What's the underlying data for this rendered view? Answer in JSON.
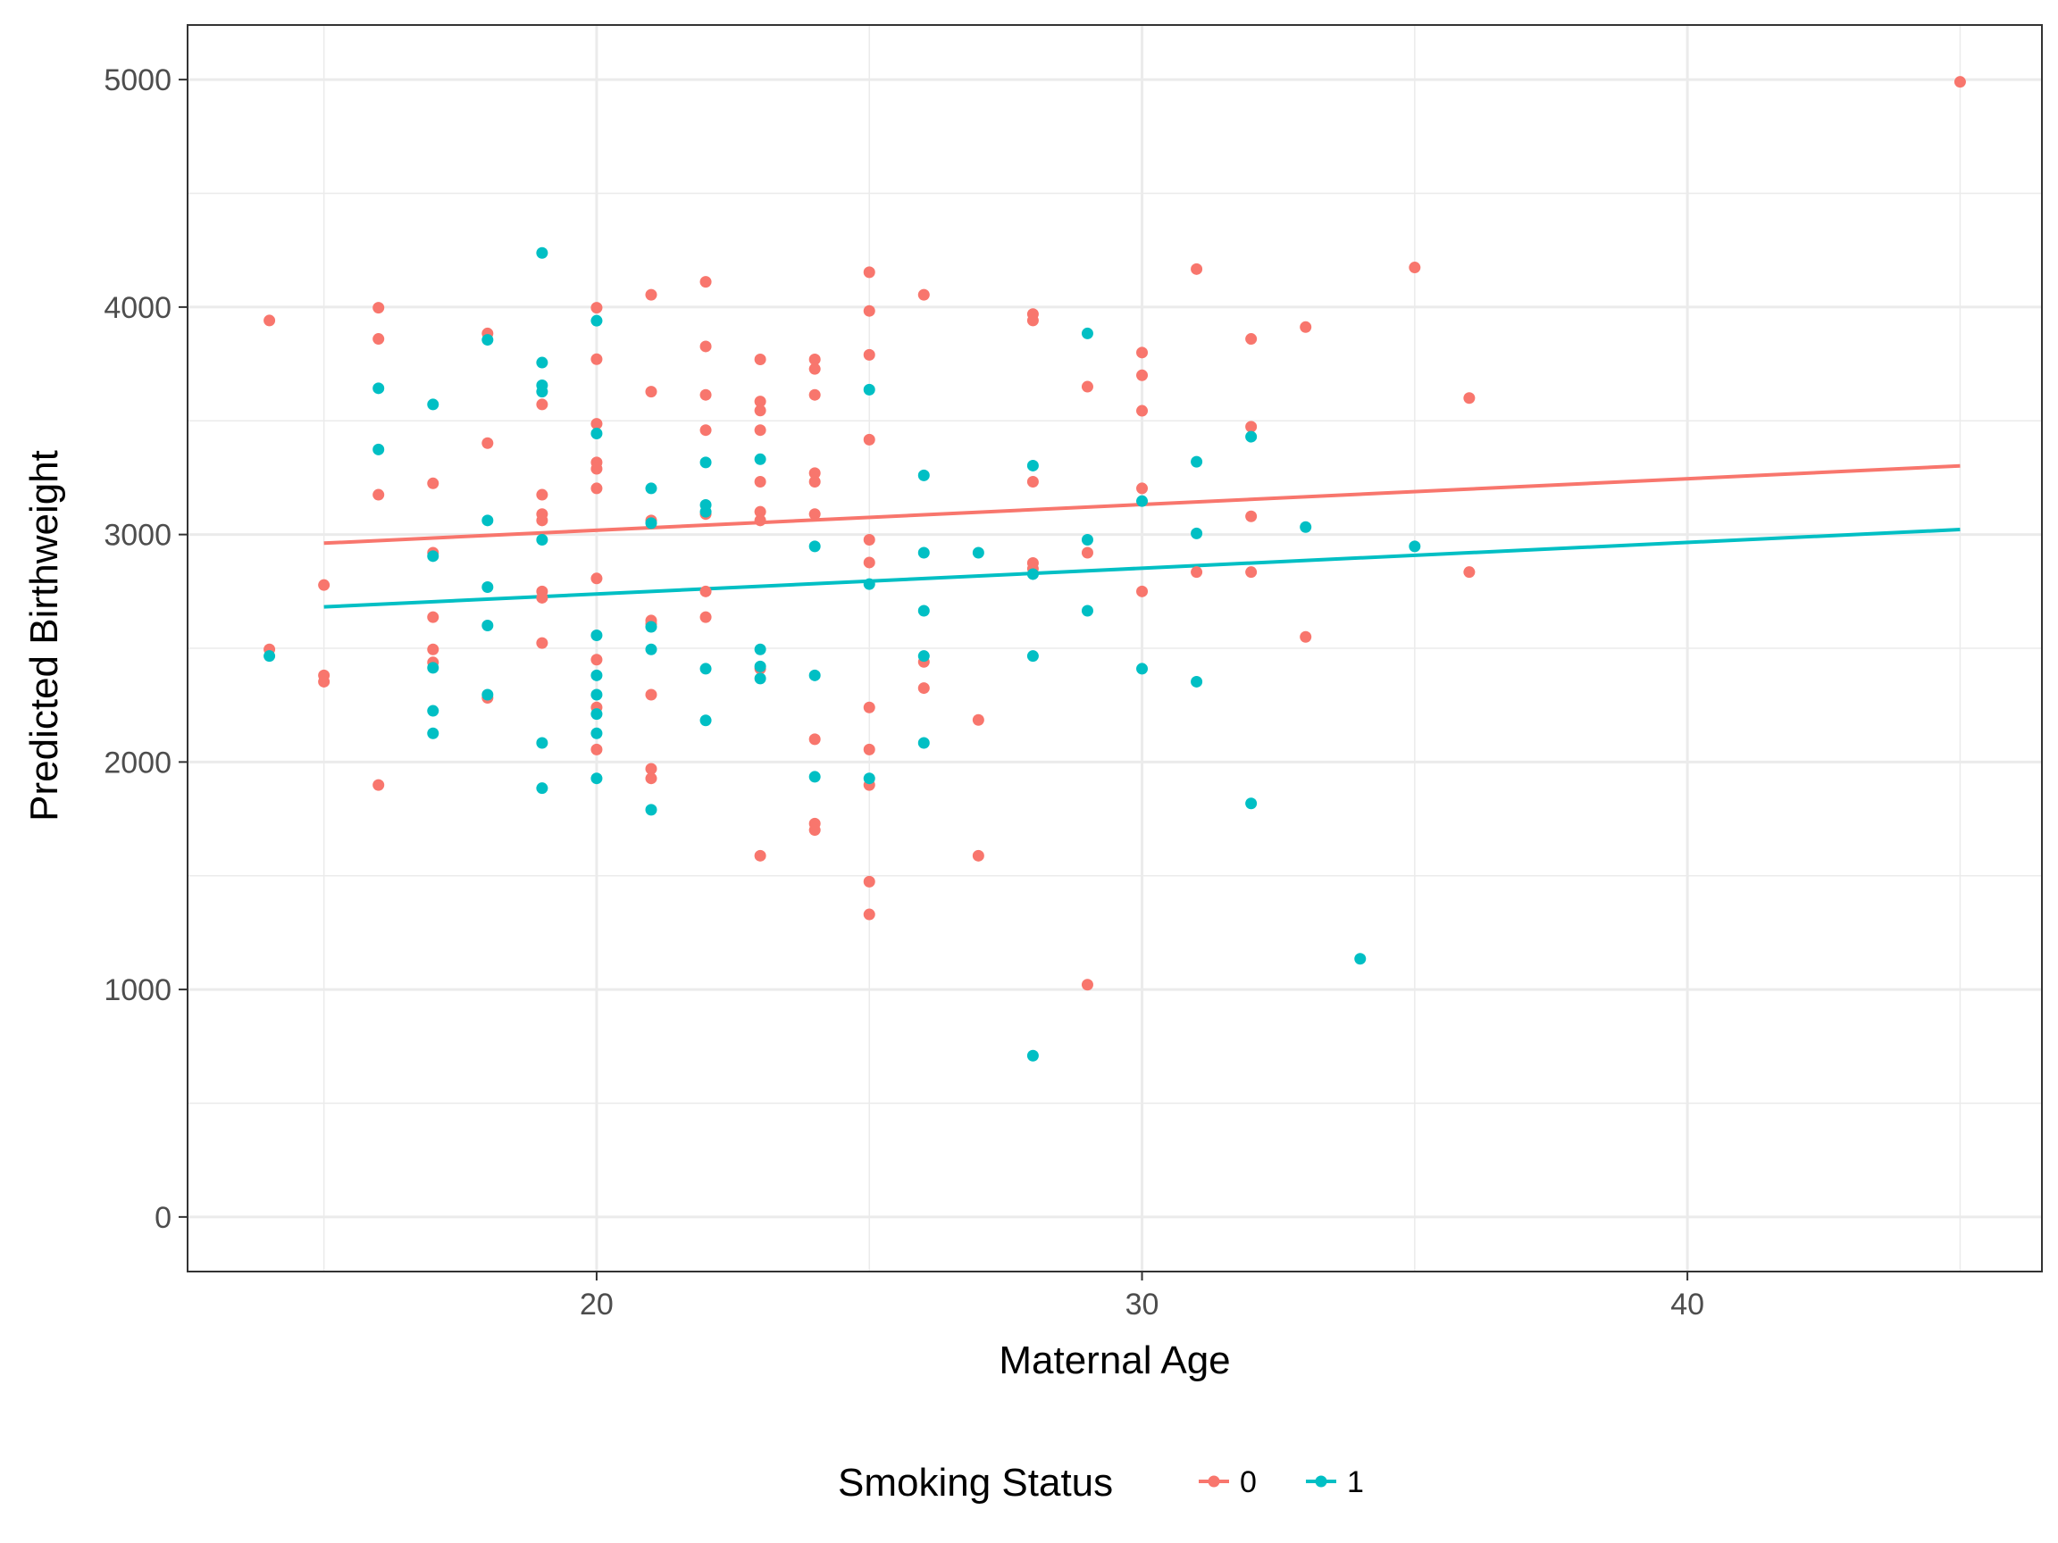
{
  "chart_data": {
    "type": "scatter",
    "title": "",
    "xlabel": "Maternal Age",
    "ylabel": "Predicted Birthweight",
    "xlim": [
      12.5,
      46.5
    ],
    "ylim": [
      -240,
      5240
    ],
    "x_ticks": [
      20,
      30,
      40
    ],
    "y_ticks": [
      0,
      1000,
      2000,
      3000,
      4000,
      5000
    ],
    "grid": true,
    "legend": {
      "title": "Smoking Status",
      "position": "bottom"
    },
    "series": [
      {
        "name": "0",
        "color": "#F8766D",
        "points": [
          [
            14,
            3941
          ],
          [
            14,
            2495
          ],
          [
            15,
            2778
          ],
          [
            15,
            2381
          ],
          [
            15,
            2353
          ],
          [
            16,
            3997
          ],
          [
            16,
            3860
          ],
          [
            16,
            3175
          ],
          [
            16,
            1899
          ],
          [
            17,
            3225
          ],
          [
            17,
            2920
          ],
          [
            17,
            2637
          ],
          [
            17,
            2495
          ],
          [
            17,
            2438
          ],
          [
            18,
            3884
          ],
          [
            18,
            3402
          ],
          [
            18,
            2282
          ],
          [
            19,
            3572
          ],
          [
            19,
            3175
          ],
          [
            19,
            3090
          ],
          [
            19,
            3062
          ],
          [
            19,
            2750
          ],
          [
            19,
            2722
          ],
          [
            19,
            2523
          ],
          [
            20,
            3997
          ],
          [
            20,
            3771
          ],
          [
            20,
            3487
          ],
          [
            20,
            3317
          ],
          [
            20,
            3289
          ],
          [
            20,
            3203
          ],
          [
            20,
            2807
          ],
          [
            20,
            2450
          ],
          [
            20,
            2240
          ],
          [
            20,
            2055
          ],
          [
            21,
            4054
          ],
          [
            21,
            3628
          ],
          [
            21,
            3062
          ],
          [
            21,
            2622
          ],
          [
            21,
            2608
          ],
          [
            21,
            2296
          ],
          [
            21,
            1970
          ],
          [
            21,
            1928
          ],
          [
            22,
            4111
          ],
          [
            22,
            3827
          ],
          [
            22,
            3614
          ],
          [
            22,
            3459
          ],
          [
            22,
            3090
          ],
          [
            22,
            2750
          ],
          [
            22,
            2637
          ],
          [
            23,
            3770
          ],
          [
            23,
            3585
          ],
          [
            23,
            3545
          ],
          [
            23,
            3459
          ],
          [
            23,
            3232
          ],
          [
            23,
            3100
          ],
          [
            23,
            3062
          ],
          [
            23,
            2410
          ],
          [
            23,
            1588
          ],
          [
            24,
            3770
          ],
          [
            24,
            3728
          ],
          [
            24,
            3614
          ],
          [
            24,
            3270
          ],
          [
            24,
            3232
          ],
          [
            24,
            3090
          ],
          [
            24,
            2100
          ],
          [
            24,
            1729
          ],
          [
            24,
            1701
          ],
          [
            25,
            4153
          ],
          [
            25,
            3983
          ],
          [
            25,
            3790
          ],
          [
            25,
            3417
          ],
          [
            25,
            2977
          ],
          [
            25,
            2877
          ],
          [
            25,
            2240
          ],
          [
            25,
            2055
          ],
          [
            25,
            1899
          ],
          [
            25,
            1474
          ],
          [
            25,
            1330
          ],
          [
            26,
            4054
          ],
          [
            26,
            2440
          ],
          [
            26,
            2325
          ],
          [
            27,
            2185
          ],
          [
            27,
            1588
          ],
          [
            28,
            3969
          ],
          [
            28,
            3941
          ],
          [
            28,
            3232
          ],
          [
            28,
            2875
          ],
          [
            28,
            2850
          ],
          [
            29,
            3650
          ],
          [
            29,
            2920
          ],
          [
            29,
            1021
          ],
          [
            30,
            3800
          ],
          [
            30,
            3700
          ],
          [
            30,
            3544
          ],
          [
            30,
            3203
          ],
          [
            30,
            2750
          ],
          [
            31,
            4167
          ],
          [
            31,
            2835
          ],
          [
            32,
            3860
          ],
          [
            32,
            3474
          ],
          [
            32,
            3080
          ],
          [
            32,
            2835
          ],
          [
            33,
            3912
          ],
          [
            33,
            2550
          ],
          [
            35,
            4174
          ],
          [
            36,
            3600
          ],
          [
            36,
            2835
          ],
          [
            45,
            4990
          ]
        ],
        "fit_line": {
          "x": [
            15,
            45
          ],
          "y": [
            2962,
            3302
          ]
        }
      },
      {
        "name": "1",
        "color": "#00BFC4",
        "points": [
          [
            14,
            2466
          ],
          [
            16,
            3643
          ],
          [
            16,
            3374
          ],
          [
            17,
            3572
          ],
          [
            17,
            2905
          ],
          [
            17,
            2414
          ],
          [
            17,
            2225
          ],
          [
            17,
            2126
          ],
          [
            18,
            3856
          ],
          [
            18,
            3062
          ],
          [
            18,
            2769
          ],
          [
            18,
            2600
          ],
          [
            18,
            2296
          ],
          [
            19,
            4238
          ],
          [
            19,
            3756
          ],
          [
            19,
            3656
          ],
          [
            19,
            3628
          ],
          [
            19,
            2977
          ],
          [
            19,
            2084
          ],
          [
            19,
            1885
          ],
          [
            20,
            3940
          ],
          [
            20,
            3444
          ],
          [
            20,
            2557
          ],
          [
            20,
            2381
          ],
          [
            20,
            2296
          ],
          [
            20,
            2211
          ],
          [
            20,
            2126
          ],
          [
            20,
            1928
          ],
          [
            21,
            3203
          ],
          [
            21,
            3050
          ],
          [
            21,
            2594
          ],
          [
            21,
            2495
          ],
          [
            21,
            1790
          ],
          [
            22,
            3317
          ],
          [
            22,
            3130
          ],
          [
            22,
            3100
          ],
          [
            22,
            2410
          ],
          [
            22,
            2183
          ],
          [
            23,
            3331
          ],
          [
            23,
            2495
          ],
          [
            23,
            2420
          ],
          [
            23,
            2367
          ],
          [
            24,
            2948
          ],
          [
            24,
            2381
          ],
          [
            24,
            1935
          ],
          [
            25,
            3637
          ],
          [
            25,
            2782
          ],
          [
            25,
            1928
          ],
          [
            26,
            3260
          ],
          [
            26,
            2920
          ],
          [
            26,
            2665
          ],
          [
            26,
            2466
          ],
          [
            26,
            2084
          ],
          [
            27,
            2920
          ],
          [
            28,
            3303
          ],
          [
            28,
            2826
          ],
          [
            28,
            2466
          ],
          [
            28,
            709
          ],
          [
            29,
            3884
          ],
          [
            29,
            2977
          ],
          [
            29,
            2665
          ],
          [
            30,
            3147
          ],
          [
            30,
            2410
          ],
          [
            31,
            3320
          ],
          [
            31,
            3005
          ],
          [
            31,
            2353
          ],
          [
            32,
            3430
          ],
          [
            32,
            1818
          ],
          [
            33,
            3033
          ],
          [
            34,
            1135
          ],
          [
            35,
            2948
          ]
        ],
        "fit_line": {
          "x": [
            15,
            45
          ],
          "y": [
            2682,
            3022
          ]
        }
      }
    ]
  }
}
